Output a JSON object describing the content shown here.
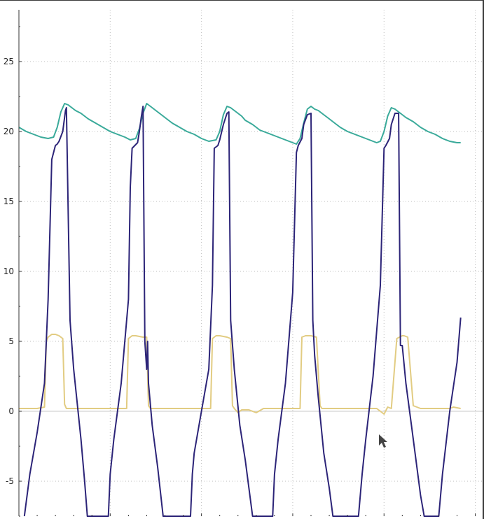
{
  "chart_data": {
    "type": "line",
    "title": "",
    "xlabel": "",
    "ylabel": "",
    "ylim": [
      -7.5,
      28.7
    ],
    "xlim": [
      0,
      25.4
    ],
    "grid": true,
    "ytick_labels": [
      "-5",
      "0",
      "5",
      "10",
      "15",
      "20",
      "25"
    ],
    "y_ticks": [
      -5,
      0,
      5,
      10,
      15,
      20,
      25
    ],
    "x_grid": [
      5,
      10,
      15,
      20,
      25
    ],
    "series": [
      {
        "color": "#3aaa9a",
        "x": [
          0,
          0.4,
          0.8,
          1.2,
          1.6,
          1.9,
          2.1,
          2.3,
          2.5,
          2.7,
          2.9,
          3.1,
          3.4,
          3.8,
          4.2,
          4.6,
          5.0,
          5.4,
          5.8,
          6.1,
          6.4,
          6.6,
          6.8,
          7.0,
          7.2,
          7.4,
          7.6,
          7.8,
          8.0,
          8.4,
          8.8,
          9.2,
          9.6,
          10.0,
          10.4,
          10.8,
          11.0,
          11.2,
          11.4,
          11.6,
          11.8,
          12.0,
          12.2,
          12.4,
          12.8,
          13.2,
          13.6,
          14.0,
          14.4,
          14.8,
          15.2,
          15.4,
          15.6,
          15.8,
          16.0,
          16.2,
          16.4,
          16.6,
          16.8,
          17.2,
          17.6,
          18.0,
          18.4,
          18.8,
          19.2,
          19.6,
          19.8,
          20.0,
          20.2,
          20.4,
          20.6,
          20.8,
          21.0,
          21.2,
          21.6,
          22.0,
          22.4,
          22.8,
          23.2,
          23.6,
          24.0,
          24.2
        ],
        "y": [
          20.3,
          20.0,
          19.8,
          19.6,
          19.5,
          19.6,
          20.3,
          21.4,
          22.0,
          21.9,
          21.7,
          21.5,
          21.3,
          20.9,
          20.6,
          20.3,
          20.0,
          19.8,
          19.6,
          19.4,
          19.5,
          20.2,
          21.3,
          22.0,
          21.8,
          21.6,
          21.4,
          21.2,
          21.0,
          20.6,
          20.3,
          20.0,
          19.8,
          19.5,
          19.3,
          19.4,
          20.0,
          21.2,
          21.8,
          21.7,
          21.5,
          21.3,
          21.1,
          20.8,
          20.5,
          20.1,
          19.9,
          19.7,
          19.5,
          19.3,
          19.1,
          19.5,
          20.6,
          21.6,
          21.8,
          21.6,
          21.5,
          21.3,
          21.1,
          20.7,
          20.3,
          20.0,
          19.8,
          19.6,
          19.4,
          19.2,
          19.3,
          20.0,
          21.1,
          21.7,
          21.6,
          21.4,
          21.2,
          21.0,
          20.7,
          20.3,
          20.0,
          19.8,
          19.5,
          19.3,
          19.2,
          19.2
        ]
      },
      {
        "color": "#e2cc82",
        "x": [
          0,
          0.5,
          1.0,
          1.4,
          1.5,
          1.6,
          1.8,
          2.0,
          2.2,
          2.4,
          2.5,
          2.6,
          2.8,
          3.2,
          3.8,
          4.4,
          4.8,
          5.0,
          5.2,
          5.6,
          5.9,
          6.0,
          6.2,
          6.4,
          6.8,
          7.0,
          7.1,
          7.2,
          7.4,
          8.0,
          8.6,
          9.0,
          9.6,
          10.0,
          10.5,
          10.6,
          10.8,
          11.0,
          11.4,
          11.6,
          11.7,
          11.8,
          12.0,
          12.2,
          12.6,
          13.0,
          13.4,
          14.0,
          14.6,
          15.0,
          15.4,
          15.5,
          15.7,
          16.0,
          16.3,
          16.5,
          16.6,
          16.8,
          17.2,
          17.8,
          18.4,
          19.2,
          19.6,
          20.0,
          20.2,
          20.4,
          20.7,
          21.0,
          21.1,
          21.3,
          21.6,
          22.0,
          22.6,
          23.2,
          23.6,
          23.8,
          24.2
        ],
        "y": [
          0.2,
          0.2,
          0.2,
          0.3,
          5.0,
          5.3,
          5.5,
          5.5,
          5.4,
          5.2,
          0.5,
          0.2,
          0.2,
          0.2,
          0.2,
          0.2,
          0.2,
          0.2,
          0.2,
          0.2,
          0.2,
          5.2,
          5.4,
          5.4,
          5.3,
          5.3,
          0.4,
          0.2,
          0.2,
          0.2,
          0.2,
          0.2,
          0.2,
          0.2,
          0.2,
          5.2,
          5.4,
          5.4,
          5.3,
          5.2,
          0.4,
          0.2,
          -0.1,
          0.1,
          0.1,
          -0.1,
          0.2,
          0.2,
          0.2,
          0.2,
          0.2,
          5.3,
          5.4,
          5.4,
          5.3,
          0.4,
          0.2,
          0.2,
          0.2,
          0.2,
          0.2,
          0.2,
          0.2,
          -0.2,
          0.3,
          0.2,
          5.2,
          5.4,
          5.4,
          5.3,
          0.4,
          0.2,
          0.2,
          0.2,
          0.2,
          0.3,
          0.2
        ]
      },
      {
        "color": "#2c2478",
        "x": [
          0.3,
          0.6,
          1.0,
          1.4,
          1.6,
          1.8,
          2.0,
          2.1,
          2.2,
          2.4,
          2.5,
          2.55,
          2.6,
          2.8,
          3.0,
          3.4,
          3.6,
          3.75,
          4.9,
          5.0,
          5.2,
          5.6,
          6.0,
          6.1,
          6.2,
          6.5,
          6.6,
          6.7,
          6.8,
          6.9,
          7.0,
          7.05,
          7.1,
          7.3,
          7.6,
          7.9,
          8.1,
          8.3,
          9.4,
          9.5,
          9.6,
          10.0,
          10.4,
          10.6,
          10.7,
          10.9,
          11.0,
          11.2,
          11.4,
          11.5,
          11.6,
          11.8,
          12.1,
          12.4,
          12.6,
          12.8,
          13.9,
          14.0,
          14.2,
          14.6,
          15.0,
          15.2,
          15.3,
          15.5,
          15.6,
          15.8,
          16.0,
          16.1,
          16.2,
          16.4,
          16.7,
          17.0,
          17.2,
          17.4,
          18.6,
          18.8,
          19.0,
          19.4,
          19.8,
          20.0,
          20.1,
          20.3,
          20.4,
          20.6,
          20.8,
          20.9,
          21.0,
          21.2,
          21.5,
          21.8,
          22.0,
          22.2,
          23.0,
          23.2,
          23.6,
          24.0,
          24.2
        ],
        "y": [
          -7.5,
          -4.5,
          -1.5,
          2.0,
          8.0,
          18.0,
          19.0,
          19.1,
          19.3,
          20.0,
          21.0,
          21.5,
          21.7,
          6.5,
          3.0,
          -2.0,
          -5.0,
          -7.5,
          -7.5,
          -4.5,
          -2.0,
          2.0,
          8.0,
          16.0,
          18.8,
          19.2,
          20.0,
          21.0,
          21.8,
          5.0,
          3.0,
          5.0,
          2.0,
          -1.0,
          -4.0,
          -7.5,
          -7.5,
          -7.5,
          -7.5,
          -4.5,
          -3.0,
          0.0,
          3.0,
          9.0,
          18.8,
          19.0,
          19.4,
          20.5,
          21.3,
          21.4,
          6.5,
          3.0,
          -1.0,
          -3.5,
          -5.5,
          -7.5,
          -7.5,
          -4.5,
          -2.0,
          2.0,
          8.5,
          18.5,
          19.0,
          19.5,
          20.5,
          21.2,
          21.3,
          6.5,
          4.0,
          1.0,
          -3.0,
          -5.5,
          -7.5,
          -7.5,
          -7.5,
          -4.5,
          -2.0,
          2.5,
          9.0,
          18.8,
          19.0,
          19.5,
          20.5,
          21.3,
          21.3,
          4.7,
          4.7,
          2.0,
          -1.0,
          -4.0,
          -6.0,
          -7.5,
          -7.5,
          -4.5,
          0.0,
          3.5,
          6.7
        ]
      }
    ]
  }
}
